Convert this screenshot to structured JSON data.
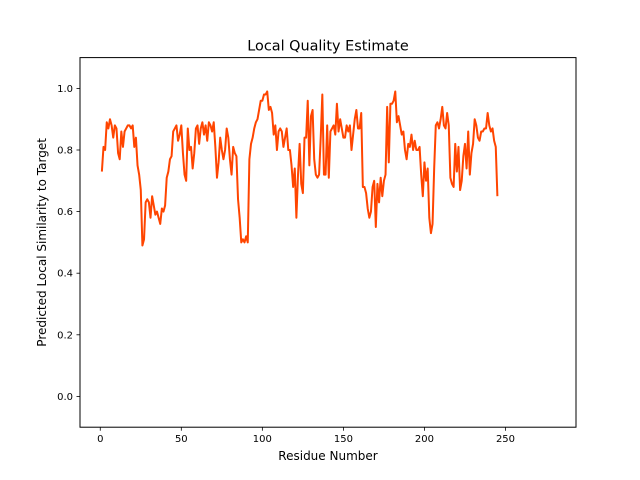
{
  "chart_data": {
    "type": "line",
    "title": "Local Quality Estimate",
    "xlabel": "Residue Number",
    "ylabel": "Predicted Local Similarity to Target",
    "xlim": [
      -12.5,
      293.5
    ],
    "ylim": [
      -0.1,
      1.1
    ],
    "xticks": [
      0,
      50,
      100,
      150,
      200,
      250
    ],
    "yticks": [
      0.0,
      0.2,
      0.4,
      0.6,
      0.8,
      1.0
    ],
    "xtick_labels": [
      "0",
      "50",
      "100",
      "150",
      "200",
      "250"
    ],
    "ytick_labels": [
      "0.0",
      "0.2",
      "0.4",
      "0.6",
      "0.8",
      "1.0"
    ],
    "grid": false,
    "series": [
      {
        "color": "#ff4500",
        "points": [
          [
            1,
            0.73
          ],
          [
            2,
            0.81
          ],
          [
            3,
            0.8
          ],
          [
            4,
            0.89
          ],
          [
            5,
            0.87
          ],
          [
            6,
            0.9
          ],
          [
            7,
            0.88
          ],
          [
            8,
            0.84
          ],
          [
            9,
            0.88
          ],
          [
            10,
            0.87
          ],
          [
            11,
            0.79
          ],
          [
            12,
            0.77
          ],
          [
            13,
            0.86
          ],
          [
            14,
            0.81
          ],
          [
            15,
            0.86
          ],
          [
            16,
            0.87
          ],
          [
            17,
            0.88
          ],
          [
            18,
            0.88
          ],
          [
            19,
            0.87
          ],
          [
            20,
            0.88
          ],
          [
            21,
            0.81
          ],
          [
            22,
            0.84
          ],
          [
            23,
            0.75
          ],
          [
            24,
            0.72
          ],
          [
            25,
            0.67
          ],
          [
            26,
            0.49
          ],
          [
            27,
            0.51
          ],
          [
            28,
            0.63
          ],
          [
            29,
            0.64
          ],
          [
            30,
            0.63
          ],
          [
            31,
            0.58
          ],
          [
            32,
            0.65
          ],
          [
            33,
            0.62
          ],
          [
            34,
            0.59
          ],
          [
            35,
            0.6
          ],
          [
            36,
            0.58
          ],
          [
            37,
            0.56
          ],
          [
            38,
            0.61
          ],
          [
            39,
            0.6
          ],
          [
            40,
            0.62
          ],
          [
            41,
            0.71
          ],
          [
            42,
            0.73
          ],
          [
            43,
            0.77
          ],
          [
            44,
            0.78
          ],
          [
            45,
            0.86
          ],
          [
            46,
            0.87
          ],
          [
            47,
            0.88
          ],
          [
            48,
            0.83
          ],
          [
            49,
            0.85
          ],
          [
            50,
            0.88
          ],
          [
            51,
            0.79
          ],
          [
            52,
            0.72
          ],
          [
            53,
            0.7
          ],
          [
            54,
            0.87
          ],
          [
            55,
            0.8
          ],
          [
            56,
            0.81
          ],
          [
            57,
            0.74
          ],
          [
            58,
            0.79
          ],
          [
            59,
            0.87
          ],
          [
            60,
            0.88
          ],
          [
            61,
            0.82
          ],
          [
            62,
            0.87
          ],
          [
            63,
            0.89
          ],
          [
            64,
            0.85
          ],
          [
            65,
            0.88
          ],
          [
            66,
            0.83
          ],
          [
            67,
            0.89
          ],
          [
            68,
            0.88
          ],
          [
            69,
            0.86
          ],
          [
            70,
            0.89
          ],
          [
            71,
            0.81
          ],
          [
            72,
            0.71
          ],
          [
            73,
            0.76
          ],
          [
            74,
            0.84
          ],
          [
            75,
            0.8
          ],
          [
            76,
            0.77
          ],
          [
            77,
            0.8
          ],
          [
            78,
            0.87
          ],
          [
            79,
            0.84
          ],
          [
            80,
            0.77
          ],
          [
            81,
            0.72
          ],
          [
            82,
            0.81
          ],
          [
            83,
            0.79
          ],
          [
            84,
            0.78
          ],
          [
            85,
            0.64
          ],
          [
            86,
            0.58
          ],
          [
            87,
            0.5
          ],
          [
            88,
            0.51
          ],
          [
            89,
            0.5
          ],
          [
            90,
            0.52
          ],
          [
            91,
            0.5
          ],
          [
            92,
            0.77
          ],
          [
            93,
            0.82
          ],
          [
            94,
            0.84
          ],
          [
            95,
            0.87
          ],
          [
            96,
            0.89
          ],
          [
            97,
            0.9
          ],
          [
            98,
            0.93
          ],
          [
            99,
            0.96
          ],
          [
            100,
            0.96
          ],
          [
            101,
            0.98
          ],
          [
            102,
            0.98
          ],
          [
            103,
            0.99
          ],
          [
            104,
            0.93
          ],
          [
            105,
            0.94
          ],
          [
            106,
            0.92
          ],
          [
            107,
            0.85
          ],
          [
            108,
            0.88
          ],
          [
            109,
            0.8
          ],
          [
            110,
            0.86
          ],
          [
            111,
            0.87
          ],
          [
            112,
            0.86
          ],
          [
            113,
            0.81
          ],
          [
            114,
            0.84
          ],
          [
            115,
            0.87
          ],
          [
            116,
            0.8
          ],
          [
            117,
            0.8
          ],
          [
            118,
            0.75
          ],
          [
            119,
            0.68
          ],
          [
            120,
            0.74
          ],
          [
            121,
            0.58
          ],
          [
            122,
            0.72
          ],
          [
            123,
            0.82
          ],
          [
            124,
            0.69
          ],
          [
            125,
            0.66
          ],
          [
            126,
            0.84
          ],
          [
            127,
            0.84
          ],
          [
            128,
            0.96
          ],
          [
            129,
            0.75
          ],
          [
            130,
            0.91
          ],
          [
            131,
            0.93
          ],
          [
            132,
            0.77
          ],
          [
            133,
            0.72
          ],
          [
            134,
            0.71
          ],
          [
            135,
            0.72
          ],
          [
            136,
            0.84
          ],
          [
            137,
            0.98
          ],
          [
            138,
            0.72
          ],
          [
            139,
            0.72
          ],
          [
            140,
            0.88
          ],
          [
            141,
            0.71
          ],
          [
            142,
            0.86
          ],
          [
            143,
            0.87
          ],
          [
            144,
            0.88
          ],
          [
            145,
            0.85
          ],
          [
            146,
            0.95
          ],
          [
            147,
            0.86
          ],
          [
            148,
            0.9
          ],
          [
            149,
            0.87
          ],
          [
            150,
            0.84
          ],
          [
            151,
            0.84
          ],
          [
            152,
            0.88
          ],
          [
            153,
            0.86
          ],
          [
            154,
            0.88
          ],
          [
            155,
            0.8
          ],
          [
            156,
            0.85
          ],
          [
            157,
            0.9
          ],
          [
            158,
            0.93
          ],
          [
            159,
            0.87
          ],
          [
            160,
            0.87
          ],
          [
            161,
            0.92
          ],
          [
            162,
            0.68
          ],
          [
            163,
            0.68
          ],
          [
            164,
            0.66
          ],
          [
            165,
            0.61
          ],
          [
            166,
            0.58
          ],
          [
            167,
            0.6
          ],
          [
            168,
            0.68
          ],
          [
            169,
            0.7
          ],
          [
            170,
            0.55
          ],
          [
            171,
            0.69
          ],
          [
            172,
            0.63
          ],
          [
            173,
            0.71
          ],
          [
            174,
            0.65
          ],
          [
            175,
            0.7
          ],
          [
            176,
            0.72
          ],
          [
            177,
            0.94
          ],
          [
            178,
            0.76
          ],
          [
            179,
            0.95
          ],
          [
            180,
            0.95
          ],
          [
            181,
            0.96
          ],
          [
            182,
            0.99
          ],
          [
            183,
            0.89
          ],
          [
            184,
            0.91
          ],
          [
            185,
            0.88
          ],
          [
            186,
            0.85
          ],
          [
            187,
            0.86
          ],
          [
            188,
            0.8
          ],
          [
            189,
            0.77
          ],
          [
            190,
            0.82
          ],
          [
            191,
            0.81
          ],
          [
            192,
            0.85
          ],
          [
            193,
            0.8
          ],
          [
            194,
            0.83
          ],
          [
            195,
            0.8
          ],
          [
            196,
            0.8
          ],
          [
            197,
            0.81
          ],
          [
            198,
            0.72
          ],
          [
            199,
            0.65
          ],
          [
            200,
            0.76
          ],
          [
            201,
            0.7
          ],
          [
            202,
            0.74
          ],
          [
            203,
            0.58
          ],
          [
            204,
            0.53
          ],
          [
            205,
            0.56
          ],
          [
            206,
            0.74
          ],
          [
            207,
            0.88
          ],
          [
            208,
            0.89
          ],
          [
            209,
            0.87
          ],
          [
            210,
            0.9
          ],
          [
            211,
            0.94
          ],
          [
            212,
            0.88
          ],
          [
            213,
            0.87
          ],
          [
            214,
            0.92
          ],
          [
            215,
            0.88
          ],
          [
            216,
            0.71
          ],
          [
            217,
            0.69
          ],
          [
            218,
            0.68
          ],
          [
            219,
            0.82
          ],
          [
            220,
            0.73
          ],
          [
            221,
            0.81
          ],
          [
            222,
            0.67
          ],
          [
            223,
            0.7
          ],
          [
            224,
            0.78
          ],
          [
            225,
            0.82
          ],
          [
            226,
            0.74
          ],
          [
            227,
            0.86
          ],
          [
            228,
            0.72
          ],
          [
            229,
            0.79
          ],
          [
            230,
            0.82
          ],
          [
            231,
            0.9
          ],
          [
            232,
            0.88
          ],
          [
            233,
            0.84
          ],
          [
            234,
            0.83
          ],
          [
            235,
            0.86
          ],
          [
            236,
            0.86
          ],
          [
            237,
            0.87
          ],
          [
            238,
            0.87
          ],
          [
            239,
            0.92
          ],
          [
            240,
            0.88
          ],
          [
            241,
            0.86
          ],
          [
            242,
            0.87
          ],
          [
            243,
            0.83
          ],
          [
            244,
            0.81
          ],
          [
            245,
            0.65
          ]
        ]
      }
    ]
  }
}
